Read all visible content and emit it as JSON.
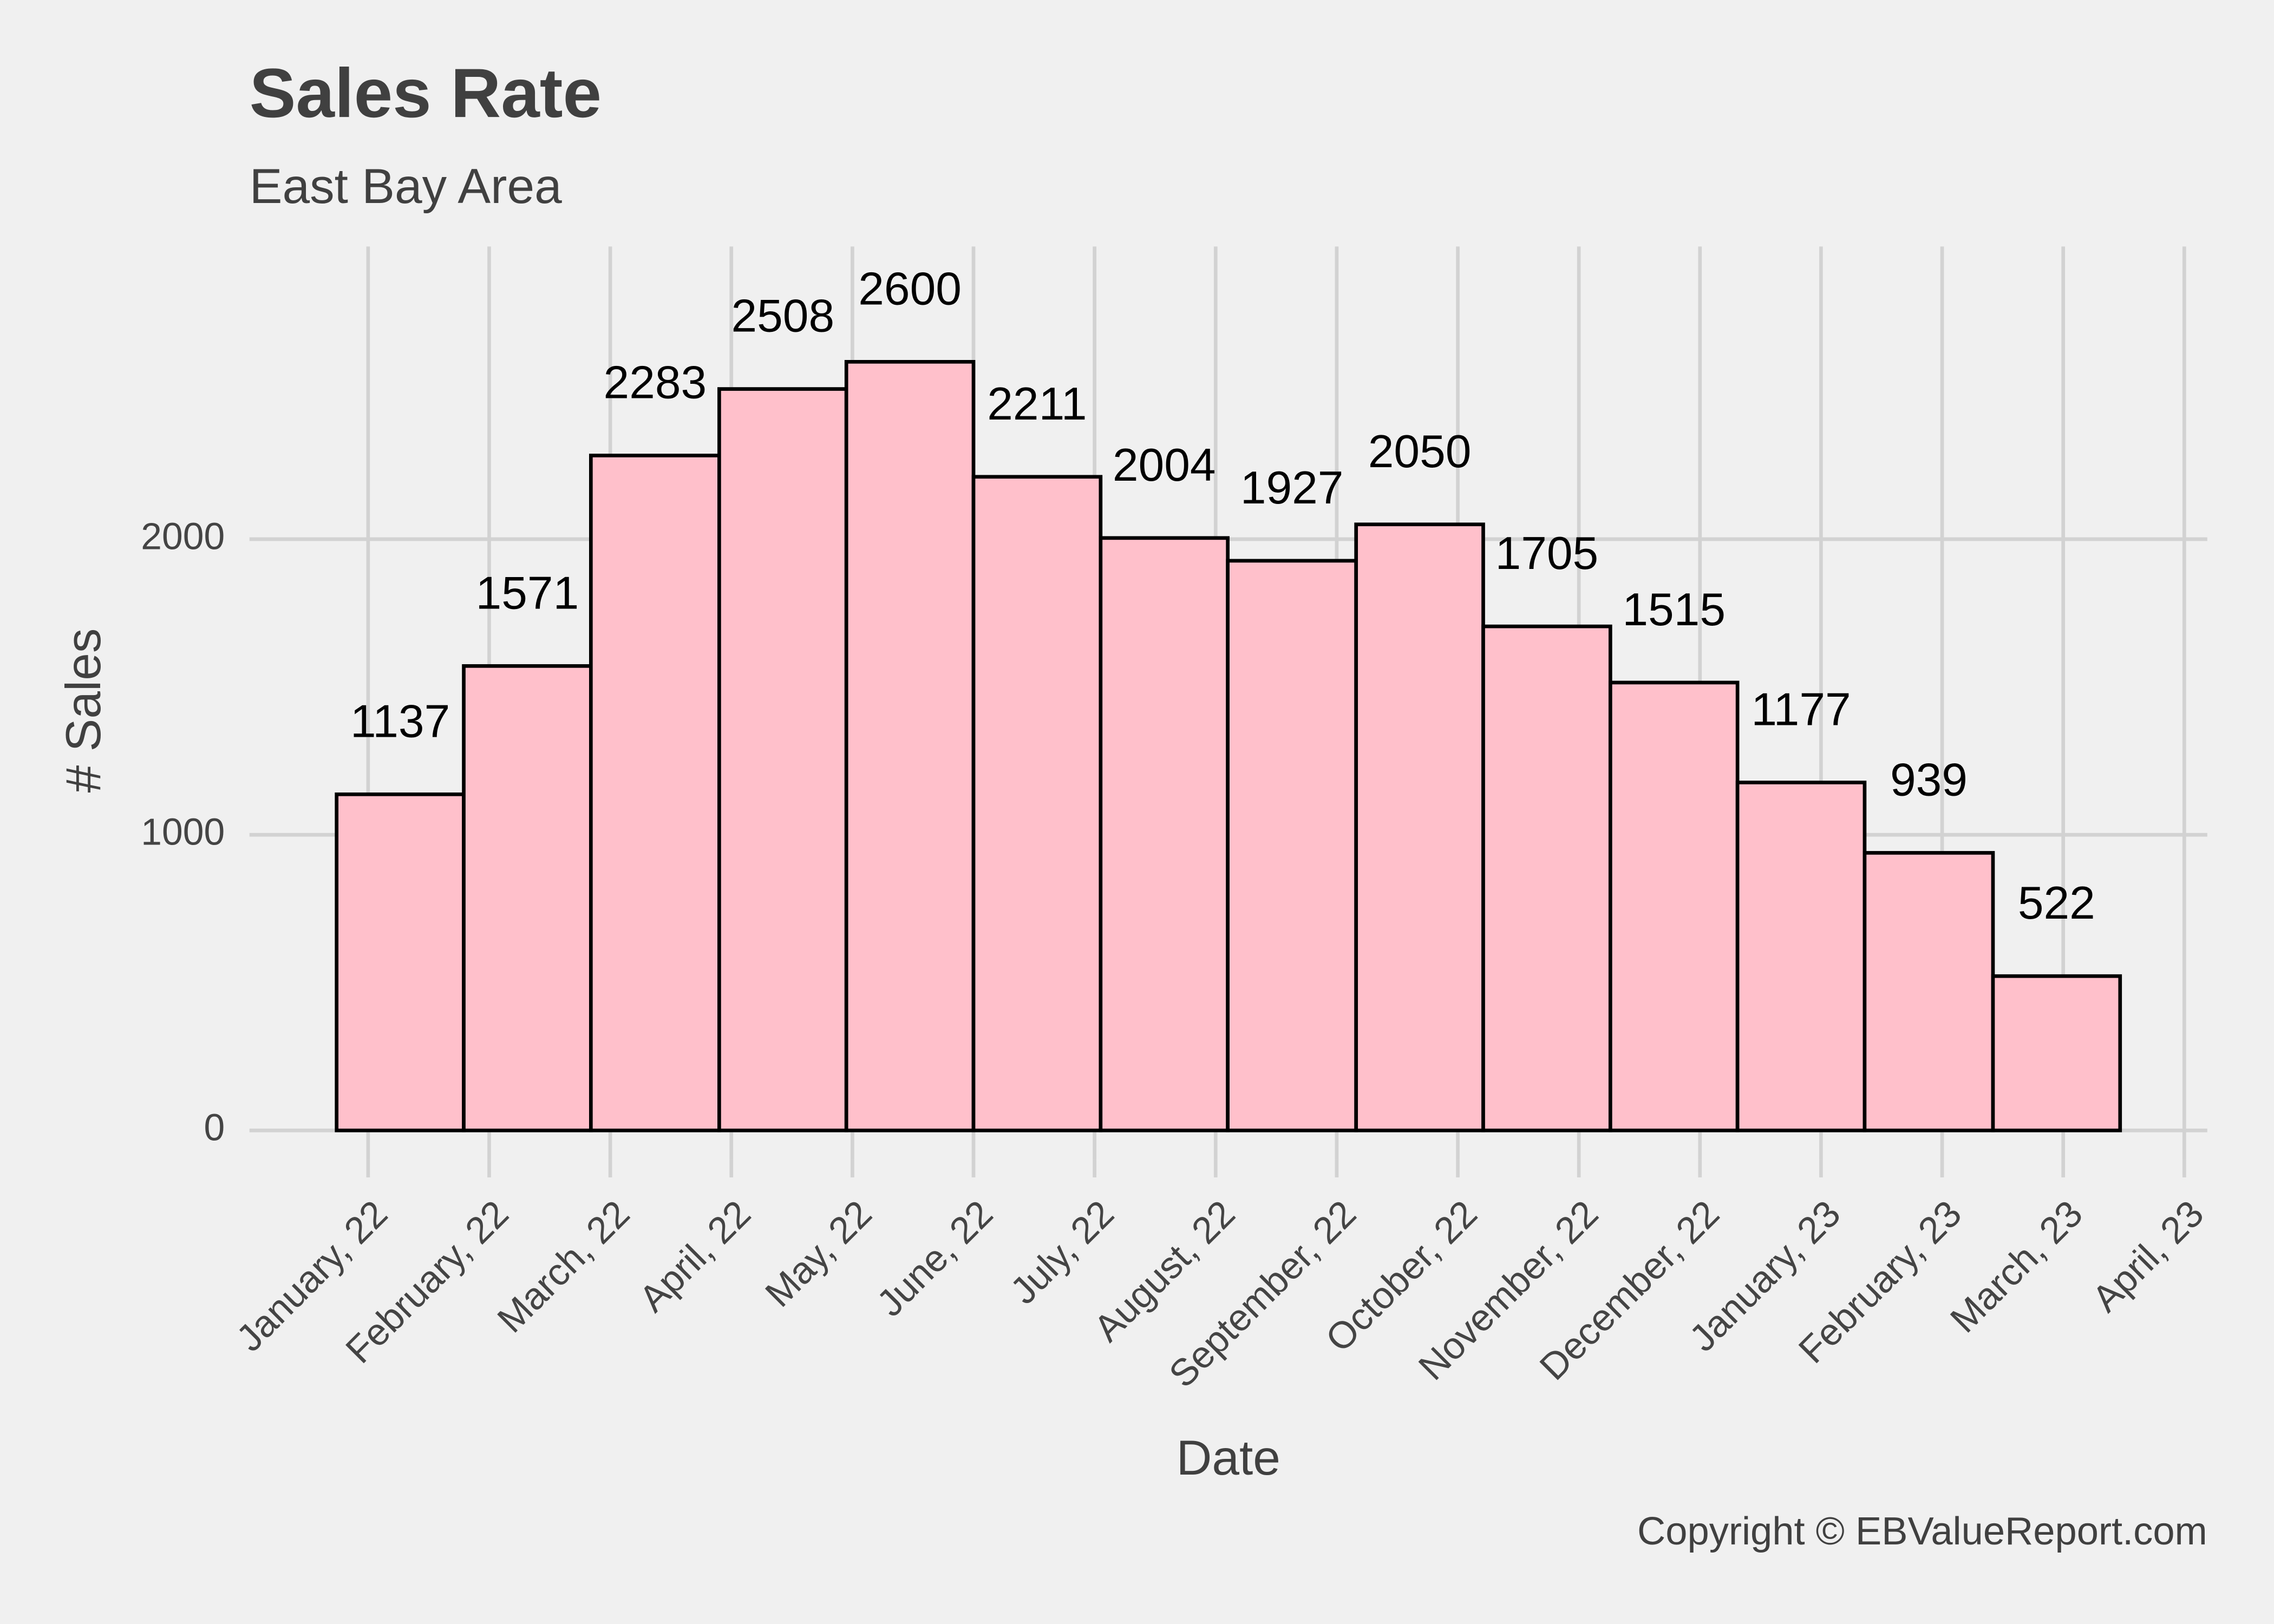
{
  "chart_data": {
    "type": "histogram",
    "title": "Sales Rate",
    "subtitle": "East Bay Area",
    "x_label": "Date",
    "y_label": "# Sales",
    "caption": "Copyright  © EBValueReport.com",
    "bins": [
      -0.26,
      0.79,
      1.84,
      2.9,
      3.95,
      5.0,
      6.05,
      7.1,
      8.16,
      9.21,
      10.26,
      11.31,
      12.36,
      13.42,
      14.47
    ],
    "values": [
      1137,
      1571,
      2283,
      2508,
      2600,
      2211,
      2004,
      1927,
      2050,
      1705,
      1515,
      1177,
      939,
      522
    ],
    "color": "#ffc0cb",
    "edge_color": "#000000",
    "xlim": [
      -0.98,
      15.19
    ],
    "xticks": [
      {
        "value": 0,
        "label": "January, 22"
      },
      {
        "value": 1,
        "label": "February, 22"
      },
      {
        "value": 2,
        "label": "March, 22"
      },
      {
        "value": 3,
        "label": "April, 22"
      },
      {
        "value": 4,
        "label": "May, 22"
      },
      {
        "value": 5,
        "label": "June, 22"
      },
      {
        "value": 6,
        "label": "July, 22"
      },
      {
        "value": 7,
        "label": "August, 22"
      },
      {
        "value": 8,
        "label": "September, 22"
      },
      {
        "value": 9,
        "label": "October, 22"
      },
      {
        "value": 10,
        "label": "November, 22"
      },
      {
        "value": 11,
        "label": "December, 22"
      },
      {
        "value": 12,
        "label": "January, 23"
      },
      {
        "value": 13,
        "label": "February, 23"
      },
      {
        "value": 14,
        "label": "March, 23"
      },
      {
        "value": 15,
        "label": "April, 23"
      }
    ],
    "ylim": [
      -100,
      2990
    ],
    "yticks": [
      0,
      1000,
      2000
    ],
    "grid": true
  }
}
